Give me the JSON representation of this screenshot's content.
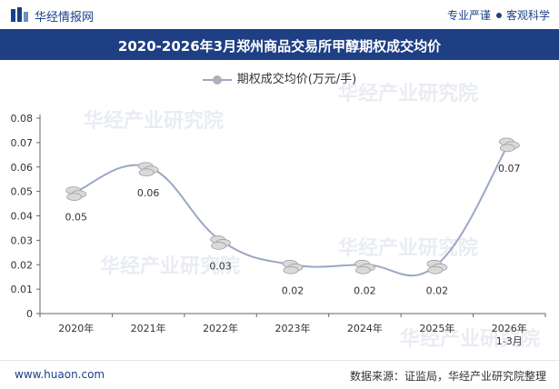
{
  "header": {
    "brand": "华经情报网",
    "slogan_left": "专业严谨",
    "slogan_right": "客观科学",
    "brand_color": "#1b3f86"
  },
  "title": "2020-2026年3月郑州商品交易所甲醇期权成交均价",
  "legend": {
    "label": "期权成交均价(万元/手)"
  },
  "footer": {
    "website": "www.huaon.com",
    "source": "数据来源：证监局，华经产业研究院整理"
  },
  "watermark": "华经产业研究院",
  "chart_data": {
    "type": "line",
    "title": "2020-2026年3月郑州商品交易所甲醇期权成交均价",
    "categories": [
      "2020年",
      "2021年",
      "2022年",
      "2023年",
      "2024年",
      "2025年",
      "2026年\n1-3月"
    ],
    "series": [
      {
        "name": "期权成交均价(万元/手)",
        "values": [
          0.05,
          0.06,
          0.03,
          0.02,
          0.02,
          0.02,
          0.07
        ],
        "labels": [
          "0.05",
          "0.06",
          "0.03",
          "0.02",
          "0.02",
          "0.02",
          "0.07"
        ],
        "color": "#9aa8c4"
      }
    ],
    "ylim": [
      0,
      0.08
    ],
    "yticks": [
      "0",
      "0.01",
      "0.02",
      "0.03",
      "0.04",
      "0.05",
      "0.06",
      "0.07",
      "0.08"
    ],
    "xlabel": "",
    "ylabel": "",
    "grid": false,
    "legend_position": "top-center"
  }
}
